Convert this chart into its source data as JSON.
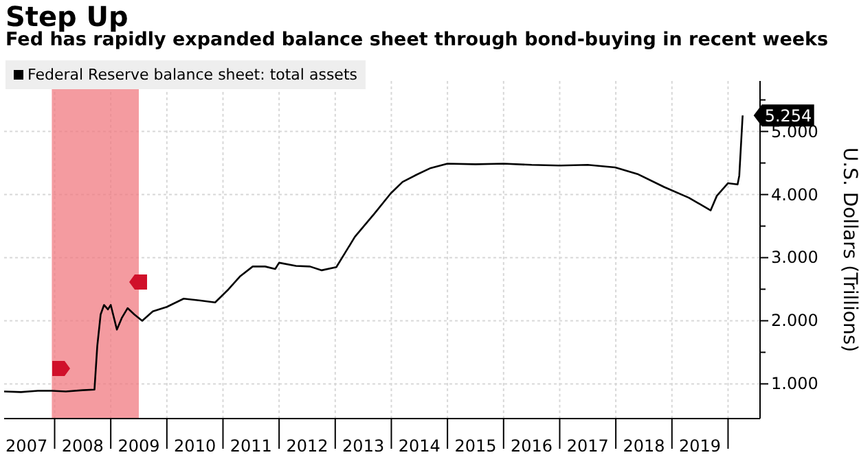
{
  "chart_data": {
    "type": "line",
    "title": "Step Up",
    "subtitle": "Fed has rapidly expanded balance sheet through bond-buying in recent weeks",
    "ylabel": "U.S. Dollars (Trillions)",
    "x": [
      2007.1,
      2007.4,
      2007.7,
      2007.95,
      2008.2,
      2008.5,
      2008.71,
      2008.76,
      2008.82,
      2008.88,
      2008.95,
      2009.0,
      2009.11,
      2009.2,
      2009.3,
      2009.42,
      2009.56,
      2009.75,
      2010.0,
      2010.3,
      2010.6,
      2010.86,
      2011.1,
      2011.3,
      2011.53,
      2011.75,
      2011.93,
      2012.0,
      2012.3,
      2012.55,
      2012.76,
      2013.02,
      2013.35,
      2013.7,
      2013.99,
      2014.2,
      2014.44,
      2014.7,
      2015.0,
      2015.5,
      2016.0,
      2016.5,
      2017.0,
      2017.5,
      2017.99,
      2018.4,
      2018.86,
      2019.3,
      2019.69,
      2019.8,
      2020.0,
      2020.17,
      2020.2,
      2020.26
    ],
    "series": [
      {
        "name": "Federal Reserve balance sheet: total assets",
        "color": "#000000",
        "values": [
          0.88,
          0.87,
          0.89,
          0.89,
          0.88,
          0.9,
          0.91,
          1.6,
          2.1,
          2.25,
          2.18,
          2.25,
          1.86,
          2.05,
          2.2,
          2.1,
          2.0,
          2.15,
          2.22,
          2.35,
          2.32,
          2.29,
          2.5,
          2.7,
          2.86,
          2.86,
          2.82,
          2.92,
          2.87,
          2.86,
          2.8,
          2.85,
          3.33,
          3.7,
          4.02,
          4.2,
          4.31,
          4.42,
          4.49,
          4.48,
          4.49,
          4.47,
          4.46,
          4.47,
          4.43,
          4.32,
          4.12,
          3.95,
          3.75,
          3.98,
          4.18,
          4.16,
          4.3,
          5.254
        ]
      }
    ],
    "xlim": [
      2007.1,
      2020.57
    ],
    "xticks": [
      {
        "value": 2008,
        "label": null
      },
      {
        "value": 2009,
        "label": null
      },
      {
        "value": 2010,
        "label": null
      },
      {
        "value": 2011,
        "label": null
      },
      {
        "value": 2012,
        "label": null
      },
      {
        "value": 2013,
        "label": null
      },
      {
        "value": 2014,
        "label": null
      },
      {
        "value": 2015,
        "label": null
      },
      {
        "value": 2016,
        "label": null
      },
      {
        "value": 2017,
        "label": null
      },
      {
        "value": 2018,
        "label": null
      },
      {
        "value": 2019,
        "label": null
      },
      {
        "value": 2020,
        "label": null
      },
      {
        "value": 2007.5,
        "label": "2007"
      },
      {
        "value": 2008.5,
        "label": "2008"
      },
      {
        "value": 2009.5,
        "label": "2009"
      },
      {
        "value": 2010.5,
        "label": "2010"
      },
      {
        "value": 2011.5,
        "label": "2011"
      },
      {
        "value": 2012.5,
        "label": "2012"
      },
      {
        "value": 2013.5,
        "label": "2013"
      },
      {
        "value": 2014.5,
        "label": "2014"
      },
      {
        "value": 2015.5,
        "label": "2015"
      },
      {
        "value": 2016.5,
        "label": "2016"
      },
      {
        "value": 2017.5,
        "label": "2017"
      },
      {
        "value": 2018.5,
        "label": "2018"
      },
      {
        "value": 2019.5,
        "label": "2019"
      }
    ],
    "ylim": [
      0.45,
      5.8
    ],
    "yticks": [
      {
        "value": 1,
        "label": "1.000"
      },
      {
        "value": 1.5,
        "label": null
      },
      {
        "value": 2,
        "label": "2.000"
      },
      {
        "value": 2.5,
        "label": null
      },
      {
        "value": 3,
        "label": "3.000"
      },
      {
        "value": 3.5,
        "label": null
      },
      {
        "value": 4,
        "label": "4.000"
      },
      {
        "value": 4.5,
        "label": null
      },
      {
        "value": 5,
        "label": "5.000"
      },
      {
        "value": 5.5,
        "label": null
      }
    ],
    "bands": [
      {
        "axis": "x",
        "from": 2007.95,
        "to": 2009.5,
        "color": "#f07a80"
      }
    ],
    "annotations": [
      {
        "text": "5.254",
        "x": 2020.26,
        "y": 5.254
      }
    ],
    "grid": true,
    "legend": "top left",
    "line_style": "solid",
    "marker": "none"
  }
}
